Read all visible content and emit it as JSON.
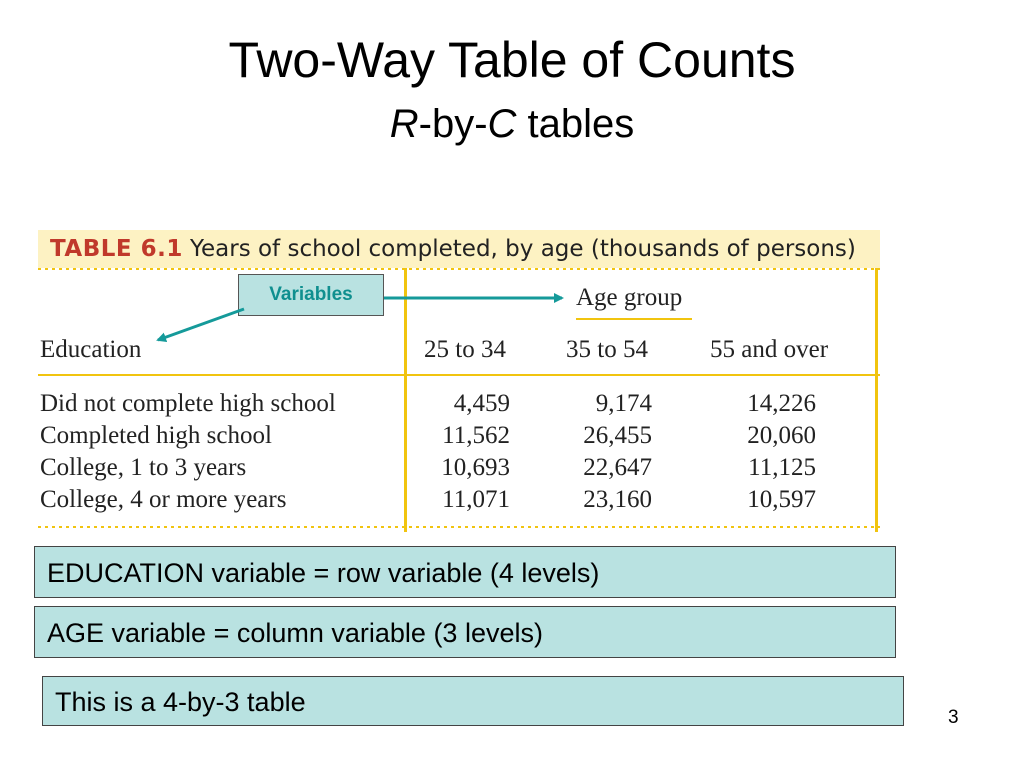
{
  "slide": {
    "title": "Two-Way Table of Counts",
    "subtitle_r": "R",
    "subtitle_by": "-by-",
    "subtitle_c": "C",
    "subtitle_tables": " tables",
    "page_number": "3"
  },
  "table": {
    "label": "TABLE 6.1",
    "caption": "Years of school completed, by age (thousands of persons)",
    "column_group": "Age group",
    "row_header": "Education",
    "columns": [
      "25 to 34",
      "35 to 54",
      "55 and over"
    ],
    "rows": [
      {
        "label": "Did not complete high school",
        "values": [
          "4,459",
          "9,174",
          "14,226"
        ]
      },
      {
        "label": "Completed high school",
        "values": [
          "11,562",
          "26,455",
          "20,060"
        ]
      },
      {
        "label": "College, 1 to 3 years",
        "values": [
          "10,693",
          "22,647",
          "11,125"
        ]
      },
      {
        "label": "College, 4 or more years",
        "values": [
          "11,071",
          "23,160",
          "10,597"
        ]
      }
    ]
  },
  "annotation": {
    "variables_label": "Variables",
    "arrow_color": "#159a9a"
  },
  "notes": [
    "EDUCATION variable = row variable (4 levels)",
    "AGE variable = column variable (3 levels)",
    "This is a 4-by-3 table"
  ]
}
